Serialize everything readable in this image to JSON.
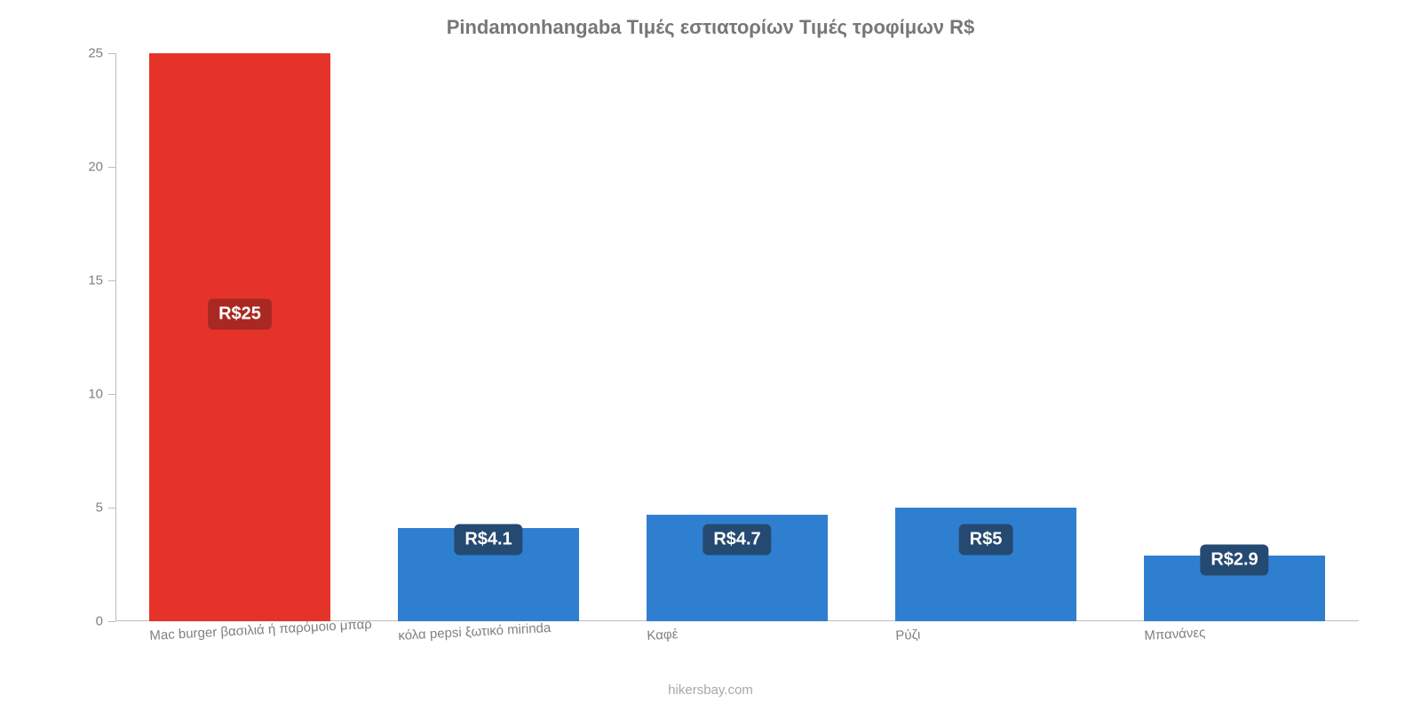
{
  "chart": {
    "type": "bar",
    "title": "Pindamonhangaba Τιμές εστιατορίων Τιμές τροφίμων R$",
    "title_fontsize": 22,
    "title_color": "#777777",
    "background_color": "#ffffff",
    "axis_color": "#bdbdbd",
    "tick_label_color": "#808080",
    "tick_label_fontsize": 15,
    "ylim": [
      0,
      25
    ],
    "ytick_step": 5,
    "yticks": [
      0,
      5,
      10,
      15,
      20,
      25
    ],
    "bar_width": 0.73,
    "categories": [
      "Mac burger βασιλιά ή παρόμοιο μπαρ",
      "κόλα pepsi ξωτικό mirinda",
      "Καφέ",
      "Ρύζι",
      "Μπανάνες"
    ],
    "category_label_rotation_deg": -3,
    "values": [
      25,
      4.1,
      4.7,
      5,
      2.9
    ],
    "value_labels": [
      "R$25",
      "R$4.1",
      "R$4.7",
      "R$5",
      "R$2.9"
    ],
    "bar_colors": [
      "#e6332a",
      "#2f7fd0",
      "#2f7fd0",
      "#2f7fd0",
      "#2f7fd0"
    ],
    "badge_bg_colors": [
      "#a92922",
      "#254a72",
      "#254a72",
      "#254a72",
      "#254a72"
    ],
    "badge_text_color": "#ffffff",
    "badge_fontsize": 20,
    "badge_y_values": [
      13.5,
      3.6,
      3.6,
      3.6,
      2.7
    ],
    "attribution": "hikersbay.com",
    "attribution_color": "#a8a8a8",
    "attribution_fontsize": 15
  }
}
